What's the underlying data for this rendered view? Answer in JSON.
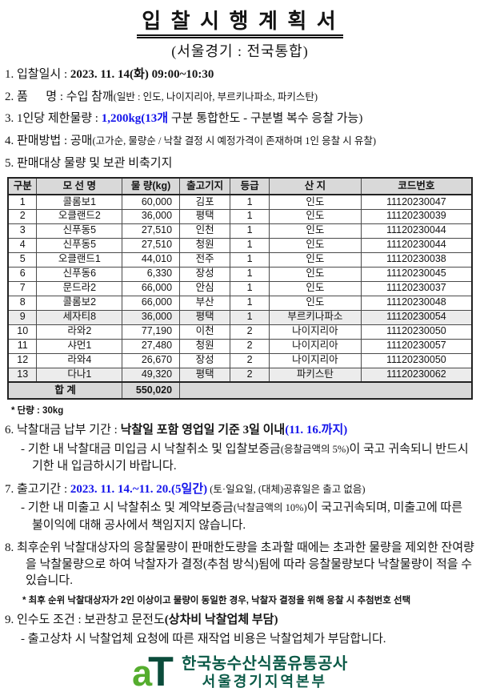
{
  "colors": {
    "blue": "#1515eb",
    "logo_green": "#55ad2e",
    "logo_dark": "#0b4c3b",
    "org_green": "#0b5a47",
    "table_header_bg": "#d9d9d9",
    "row_shade": "#ececec"
  },
  "title": "입 찰 시 행 계 획 서",
  "subtitle": "(서울경기 : 전국통합)",
  "sections": {
    "s1": {
      "prefix": "1. 입찰일시 : ",
      "value": "2023. 11. 14(화) 09:00~10:30"
    },
    "s2": {
      "prefix": "2. 품      명 : 수입 참깨",
      "paren": "(일반 : 인도, 나이지리아, 부르키나파소, 파키스탄)"
    },
    "s3": {
      "prefix": "3. 1인당 제한물량 : ",
      "highlight": "1,200kg(13개",
      "rest": " 구분 통합한도 - 구분별 복수 응찰 가능)"
    },
    "s4": {
      "prefix": "4. 판매방법 : 공매",
      "paren": "(고가순, 물량순 / 낙찰 결정 시 예정가격이 존재하며 1인 응찰 시 유찰)"
    },
    "s5": {
      "text": "5. 판매대상 물량 및 보관 비축기지"
    },
    "unit_note": "* 단량 : 30kg",
    "s6": {
      "prefix": "6. 낙찰대금 납부 기간 : ",
      "bold": "낙찰일 포함 영업일 기준 3일 이내",
      "blue": "(11. 16.까지)",
      "sub_a": "- 기한 내 낙찰대금 미입금 시 낙찰취소 및 입찰보증금",
      "sub_small": "(응찰금액의 5%)",
      "sub_b": "이 국고 귀속되니 반드시 기한 내 입금하시기 바랍니다."
    },
    "s7": {
      "prefix": "7. 출고기간 : ",
      "blue": "2023. 11. 14.~11. 20.(5일간)",
      "paren": " (토·일요일, (대체)공휴일은 출고 없음)",
      "sub_a": "- 기한 내 미출고 시 낙찰취소 및 계약보증금",
      "sub_small": "(낙찰금액의 10%)",
      "sub_b": "이 국고귀속되며, 미출고에 따른 불이익에 대해 공사에서 책임지지 않습니다."
    },
    "s8": {
      "text": "8. 최후순위 낙찰대상자의 응찰물량이 판매한도량을 초과할 때에는 초과한 물량을 제외한 잔여량을 낙찰물량으로 하여 낙찰자가 결정(추첨 방식)됨에 따라 응찰물량보다 낙찰물량이 적을 수 있습니다.",
      "note": "* 최후 순위 낙찰대상자가 2인 이상이고 물량이 동일한 경우, 낙찰자 결정을 위해 응찰 시 추첨번호 선택"
    },
    "s9": {
      "prefix": "9. 인수도 조건 : 보관창고 문전도",
      "bold": "(상차비 낙찰업체 부담)",
      "sub": "- 출고상차 시 낙찰업체 요청에 따른 재작업 비용은 낙찰업체가 부담합니다."
    }
  },
  "table": {
    "headers": [
      "구분",
      "모 선 명",
      "물 량(kg)",
      "출고기지",
      "등급",
      "산 지",
      "코드번호"
    ],
    "col_widths": [
      "6.2%",
      "18.4%",
      "12.4%",
      "10.9%",
      "8.4%",
      "19.8%",
      "23.9%"
    ],
    "rows": [
      [
        "1",
        "콜롬보1",
        "60,000",
        "김포",
        "1",
        "인도",
        "11120230047"
      ],
      [
        "2",
        "오클랜드2",
        "36,000",
        "평택",
        "1",
        "인도",
        "11120230039"
      ],
      [
        "3",
        "신푸동5",
        "27,510",
        "인천",
        "1",
        "인도",
        "11120230044"
      ],
      [
        "4",
        "신푸동5",
        "27,510",
        "청원",
        "1",
        "인도",
        "11120230044"
      ],
      [
        "5",
        "오클랜드1",
        "44,010",
        "전주",
        "1",
        "인도",
        "11120230038"
      ],
      [
        "6",
        "신푸동6",
        "6,330",
        "장성",
        "1",
        "인도",
        "11120230045"
      ],
      [
        "7",
        "문드라2",
        "66,000",
        "안심",
        "1",
        "인도",
        "11120230037"
      ],
      [
        "8",
        "콜롬보2",
        "66,000",
        "부산",
        "1",
        "인도",
        "11120230048"
      ],
      [
        "9",
        "세자티8",
        "36,000",
        "평택",
        "1",
        "부르키나파소",
        "11120230054"
      ],
      [
        "10",
        "라와2",
        "77,190",
        "이천",
        "2",
        "나이지리아",
        "11120230050"
      ],
      [
        "11",
        "샤먼1",
        "27,480",
        "청원",
        "2",
        "나이지리아",
        "11120230057"
      ],
      [
        "12",
        "라와4",
        "26,670",
        "장성",
        "2",
        "나이지리아",
        "11120230050"
      ],
      [
        "13",
        "다나1",
        "49,320",
        "평택",
        "2",
        "파키스탄",
        "11120230062"
      ]
    ],
    "shaded_rows": [
      8,
      12
    ],
    "total_label": "합 계",
    "total_value": "550,020"
  },
  "footer": {
    "logo_a": "a",
    "logo_t": "T",
    "org": "한국농수산식품유통공사",
    "branch": "서울경기지역본부"
  }
}
